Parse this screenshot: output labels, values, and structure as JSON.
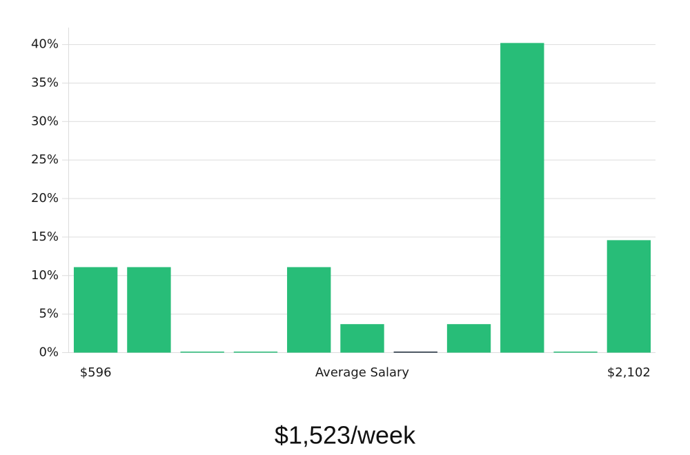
{
  "chart_data": {
    "type": "bar",
    "categories": [
      "$596",
      null,
      null,
      null,
      null,
      null,
      null,
      null,
      null,
      null,
      "$2,102"
    ],
    "values": [
      11.1,
      11.1,
      0,
      0,
      11.1,
      3.7,
      0,
      3.7,
      40.2,
      0,
      14.6
    ],
    "colors": [
      "#28bd78",
      "#28bd78",
      "#28bd78",
      "#28bd78",
      "#28bd78",
      "#28bd78",
      "#1b2a3a",
      "#28bd78",
      "#28bd78",
      "#28bd78",
      "#28bd78"
    ],
    "xlabel": "Average Salary",
    "annotation": "$1,523/week",
    "ylim": [
      0,
      42.2
    ],
    "yticks": [
      {
        "value": 0,
        "label": "0%"
      },
      {
        "value": 5,
        "label": "5%"
      },
      {
        "value": 10,
        "label": "10%"
      },
      {
        "value": 15,
        "label": "15%"
      },
      {
        "value": 20,
        "label": "20%"
      },
      {
        "value": 25,
        "label": "25%"
      },
      {
        "value": 30,
        "label": "30%"
      },
      {
        "value": 35,
        "label": "35%"
      },
      {
        "value": 40,
        "label": "40%"
      }
    ],
    "grid": true
  }
}
